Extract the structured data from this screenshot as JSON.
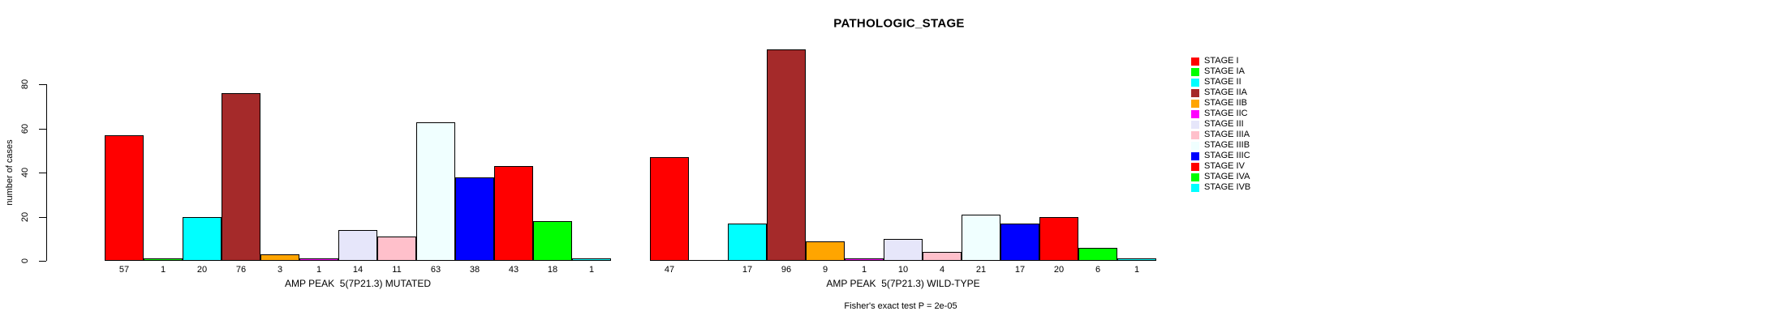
{
  "title": "PATHOLOGIC_STAGE",
  "footer": "Fisher's exact test P = 2e-05",
  "y_axis": {
    "label": "number of cases",
    "ticks": [
      0,
      20,
      40,
      60,
      80
    ]
  },
  "legend": {
    "entries": [
      {
        "label": "STAGE I",
        "color": "#FF0000"
      },
      {
        "label": "STAGE IA",
        "color": "#00FF00"
      },
      {
        "label": "STAGE II",
        "color": "#00FFFF"
      },
      {
        "label": "STAGE IIA",
        "color": "#A52A2A"
      },
      {
        "label": "STAGE IIB",
        "color": "#FFA500"
      },
      {
        "label": "STAGE IIC",
        "color": "#FF00FF"
      },
      {
        "label": "STAGE III",
        "color": "#E6E6FA"
      },
      {
        "label": "STAGE IIIA",
        "color": "#FFC0CB"
      },
      {
        "label": "STAGE IIIB",
        "color": "#F0FFFF"
      },
      {
        "label": "STAGE IIIC",
        "color": "#0000FF"
      },
      {
        "label": "STAGE IV",
        "color": "#FF0000"
      },
      {
        "label": "STAGE IVA",
        "color": "#00FF00"
      },
      {
        "label": "STAGE IVB",
        "color": "#00FFFF"
      }
    ]
  },
  "chart_data": [
    {
      "type": "bar",
      "title": "PATHOLOGIC_STAGE",
      "xlabel": "AMP PEAK  5(7P21.3) MUTATED",
      "ylabel": "number of cases",
      "categories": [
        "STAGE I",
        "STAGE IA",
        "STAGE II",
        "STAGE IIA",
        "STAGE IIB",
        "STAGE IIC",
        "STAGE III",
        "STAGE IIIA",
        "STAGE IIIB",
        "STAGE IIIC",
        "STAGE IV",
        "STAGE IVA",
        "STAGE IVB"
      ],
      "values": [
        57,
        1,
        20,
        76,
        3,
        1,
        14,
        11,
        63,
        38,
        43,
        18,
        1
      ],
      "bar_labels": [
        "57",
        "1",
        "20",
        "76",
        "3",
        "1",
        "14",
        "11",
        "63",
        "38",
        "43",
        "18",
        "1"
      ],
      "colors": [
        "#FF0000",
        "#00FF00",
        "#00FFFF",
        "#A52A2A",
        "#FFA500",
        "#FF00FF",
        "#E6E6FA",
        "#FFC0CB",
        "#F0FFFF",
        "#0000FF",
        "#FF0000",
        "#00FF00",
        "#00FFFF"
      ],
      "ylim": [
        0,
        80
      ],
      "yticks": [
        0,
        20,
        40,
        60,
        80
      ],
      "grid": false,
      "legend_position": "right"
    },
    {
      "type": "bar",
      "title": "PATHOLOGIC_STAGE",
      "xlabel": "AMP PEAK  5(7P21.3) WILD-TYPE",
      "ylabel": "number of cases",
      "categories": [
        "STAGE I",
        "STAGE IA",
        "STAGE II",
        "STAGE IIA",
        "STAGE IIB",
        "STAGE IIC",
        "STAGE III",
        "STAGE IIIA",
        "STAGE IIIB",
        "STAGE IIIC",
        "STAGE IV",
        "STAGE IVA",
        "STAGE IVB"
      ],
      "values": [
        47,
        0,
        17,
        96,
        9,
        1,
        10,
        4,
        21,
        17,
        20,
        6,
        1
      ],
      "bar_labels": [
        "47",
        "",
        "17",
        "96",
        "9",
        "1",
        "10",
        "4",
        "21",
        "17",
        "20",
        "6",
        "1"
      ],
      "colors": [
        "#FF0000",
        "#00FF00",
        "#00FFFF",
        "#A52A2A",
        "#FFA500",
        "#FF00FF",
        "#E6E6FA",
        "#FFC0CB",
        "#F0FFFF",
        "#0000FF",
        "#FF0000",
        "#00FF00",
        "#00FFFF"
      ],
      "ylim": [
        0,
        80
      ],
      "yticks": [
        0,
        20,
        40,
        60,
        80
      ],
      "grid": false,
      "legend_position": "right"
    }
  ]
}
